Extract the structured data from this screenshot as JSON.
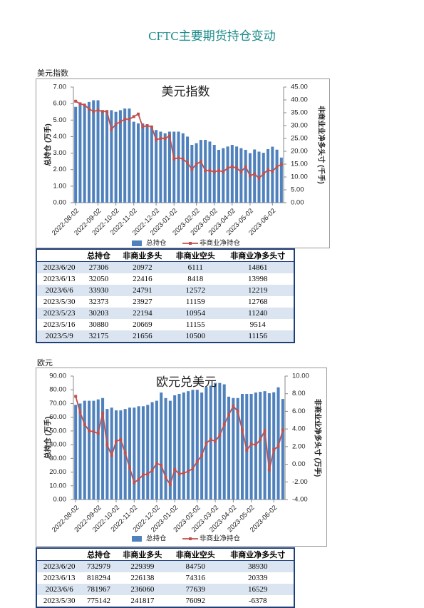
{
  "document": {
    "title": "CFTC主要期货持仓变动",
    "sections": [
      {
        "label": "美元指数",
        "table": {
          "header": [
            "总持仓",
            "非商业多头",
            "非商业空头",
            "非商业净多头寸"
          ],
          "rows": [
            [
              "2023/6/20",
              27306,
              20972,
              6111,
              14861
            ],
            [
              "2023/6/13",
              32050,
              22416,
              8418,
              13998
            ],
            [
              "2023/6/6",
              33930,
              24791,
              12572,
              12219
            ],
            [
              "2023/5/30",
              32373,
              23927,
              11159,
              12768
            ],
            [
              "2023/5/23",
              30203,
              22194,
              10954,
              11240
            ],
            [
              "2023/5/16",
              30880,
              20669,
              11155,
              9514
            ],
            [
              "2023/5/9",
              32175,
              21656,
              10500,
              11156
            ]
          ]
        }
      },
      {
        "label": "欧元",
        "table": {
          "header": [
            "总持仓",
            "非商业多头",
            "非商业空头",
            "非商业净多头寸"
          ],
          "rows": [
            [
              "2023/6/20",
              732979,
              229399,
              84750,
              38930
            ],
            [
              "2023/6/13",
              818294,
              226138,
              74316,
              20339
            ],
            [
              "2023/6/6",
              781967,
              236060,
              77639,
              16529
            ],
            [
              "2023/5/30",
              775142,
              241817,
              76092,
              -6378
            ]
          ]
        }
      }
    ]
  },
  "chart_data": [
    {
      "type": "combo",
      "title": "美元指数",
      "y_label": "总持仓 (万手)",
      "y2_label": "非商业业净多头寸 (千手)",
      "categories": [
        "2022-08-02",
        null,
        null,
        null,
        null,
        "2022-09-02",
        null,
        null,
        null,
        "2022-10-02",
        null,
        null,
        null,
        "2022-11-02",
        null,
        null,
        null,
        null,
        "2022-12-02",
        null,
        null,
        null,
        "2023-01-02",
        null,
        null,
        null,
        null,
        "2023-02-02",
        null,
        null,
        null,
        "2023-03-02",
        null,
        null,
        null,
        "2023-04-02",
        null,
        null,
        null,
        "2023-05-02",
        null,
        null,
        null,
        null,
        "2023-06-02",
        null,
        null
      ],
      "series": [
        {
          "name": "总持仓",
          "type": "bar",
          "color": "#4f81bd",
          "values": [
            5.8,
            5.9,
            5.9,
            6.1,
            6.2,
            6.2,
            5.6,
            5.5,
            5.6,
            5.5,
            5.6,
            5.7,
            5.7,
            4.9,
            4.8,
            4.8,
            4.7,
            4.6,
            4.4,
            4.3,
            4.2,
            4.3,
            4.3,
            4.3,
            4.2,
            4.0,
            3.5,
            3.6,
            3.8,
            3.8,
            3.7,
            3.5,
            3.2,
            3.3,
            3.4,
            3.5,
            3.4,
            3.3,
            3.2,
            3.0,
            3.22,
            3.09,
            3.02,
            3.24,
            3.39,
            3.21,
            2.73
          ]
        },
        {
          "name": "非商业净持仓",
          "type": "line",
          "axis": "y2",
          "color": "#c0504d",
          "values": [
            39.5,
            38.5,
            38,
            36.5,
            35.5,
            36,
            35.5,
            35.5,
            28.5,
            30.5,
            31.5,
            32.5,
            32.5,
            33.5,
            34.5,
            29.5,
            30,
            29.5,
            24.5,
            25,
            25,
            26,
            17,
            17.5,
            17,
            15.5,
            13,
            15,
            16,
            12.5,
            12.5,
            12,
            12.5,
            12,
            13.5,
            14,
            13.5,
            12,
            14,
            10.5,
            11.156,
            9.514,
            11.24,
            12.768,
            12.219,
            13.998,
            14.861
          ]
        }
      ],
      "ylim": [
        0,
        7
      ],
      "yticks": [
        {
          "value": 0,
          "label": "0.00"
        },
        {
          "value": 1,
          "label": "1.00"
        },
        {
          "value": 2,
          "label": "2.00"
        },
        {
          "value": 3,
          "label": "3.00"
        },
        {
          "value": 4,
          "label": "4.00"
        },
        {
          "value": 5,
          "label": "5.00"
        },
        {
          "value": 6,
          "label": "6.00"
        },
        {
          "value": 7,
          "label": "7.00"
        }
      ],
      "y2lim": [
        0,
        45
      ],
      "y2ticks": [
        {
          "value": 0,
          "label": "0.00"
        },
        {
          "value": 5,
          "label": "5.00"
        },
        {
          "value": 10,
          "label": "10.00"
        },
        {
          "value": 15,
          "label": "15.00"
        },
        {
          "value": 20,
          "label": "20.00"
        },
        {
          "value": 25,
          "label": "25.00"
        },
        {
          "value": 30,
          "label": "30.00"
        },
        {
          "value": 35,
          "label": "35.00"
        },
        {
          "value": 40,
          "label": "40.00"
        },
        {
          "value": 45,
          "label": "45.00"
        }
      ]
    },
    {
      "type": "combo",
      "title": "欧元兑美元",
      "y_label": "总持仓 (万手)",
      "y2_label": "非商业业净多头寸 (万手)",
      "categories": [
        "2022-08-02",
        null,
        null,
        null,
        null,
        "2022-09-02",
        null,
        null,
        null,
        "2022-10-02",
        null,
        null,
        null,
        "2022-11-02",
        null,
        null,
        null,
        null,
        "2022-12-02",
        null,
        null,
        null,
        "2023-01-02",
        null,
        null,
        null,
        null,
        "2023-02-02",
        null,
        null,
        null,
        "2023-03-02",
        null,
        null,
        null,
        "2023-04-02",
        null,
        null,
        null,
        "2023-05-02",
        null,
        null,
        null,
        null,
        "2023-06-02",
        null,
        null
      ],
      "series": [
        {
          "name": "总持仓",
          "type": "bar",
          "color": "#4f81bd",
          "values": [
            69,
            70,
            72,
            72,
            72,
            73,
            74,
            66,
            67,
            65,
            65,
            66,
            67,
            67,
            68,
            68,
            69,
            71,
            72,
            78,
            74,
            72,
            76,
            77,
            78,
            79,
            80,
            80,
            78,
            82,
            83,
            85,
            85,
            84,
            75,
            74,
            74,
            77,
            77,
            77,
            78,
            78.5,
            79,
            77.5,
            78.2,
            81.8,
            73.3
          ]
        },
        {
          "name": "非商业净持仓",
          "type": "line",
          "axis": "y2",
          "color": "#c0504d",
          "values": [
            7.7,
            5.9,
            4.5,
            3.8,
            3.7,
            3.5,
            5.8,
            2.2,
            1.0,
            2.6,
            2.8,
            1.3,
            -0.4,
            -2.1,
            -1.7,
            -1.2,
            -1.1,
            -0.7,
            0.1,
            -0.1,
            -1.5,
            -2.3,
            -0.6,
            -1.1,
            -1.0,
            -0.8,
            -0.5,
            0.3,
            1.0,
            2.4,
            2.8,
            2.6,
            3.3,
            4.5,
            5.6,
            6.6,
            6.0,
            3.9,
            1.6,
            2.3,
            2.2,
            2.8,
            3.8,
            -0.6378,
            1.6529,
            2.0339,
            3.893
          ]
        }
      ],
      "ylim": [
        0,
        90
      ],
      "yticks": [
        {
          "value": 0,
          "label": "0.00"
        },
        {
          "value": 10,
          "label": "10.00"
        },
        {
          "value": 20,
          "label": "20.00"
        },
        {
          "value": 30,
          "label": "30.00"
        },
        {
          "value": 40,
          "label": "40.00"
        },
        {
          "value": 50,
          "label": "50.00"
        },
        {
          "value": 60,
          "label": "60.00"
        },
        {
          "value": 70,
          "label": "70.00"
        },
        {
          "value": 80,
          "label": "80.00"
        },
        {
          "value": 90,
          "label": "90.00"
        }
      ],
      "y2lim": [
        -4,
        10
      ],
      "y2ticks": [
        {
          "value": -4,
          "label": "-4.00"
        },
        {
          "value": -2,
          "label": "-2.00"
        },
        {
          "value": 0,
          "label": "0.00"
        },
        {
          "value": 2,
          "label": "2.00"
        },
        {
          "value": 4,
          "label": "4.00"
        },
        {
          "value": 6,
          "label": "6.00"
        },
        {
          "value": 8,
          "label": "8.00"
        },
        {
          "value": 10,
          "label": "10.00"
        }
      ]
    }
  ]
}
